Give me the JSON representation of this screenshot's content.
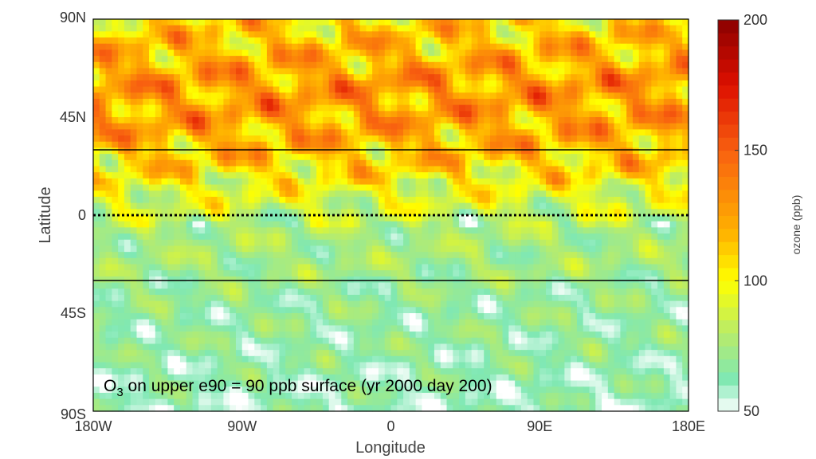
{
  "chart_data": {
    "type": "heatmap",
    "title": "",
    "annotation": {
      "species": "O",
      "subscript": "3",
      "rest": " on upper e90 = 90 ppb surface (yr 2000 day 200)"
    },
    "xlabel": "Longitude",
    "ylabel": "Latitude",
    "xlim": [
      -180,
      180
    ],
    "ylim": [
      -90,
      90
    ],
    "x_ticks": [
      {
        "value": -180,
        "label": "180W"
      },
      {
        "value": -90,
        "label": "90W"
      },
      {
        "value": 0,
        "label": "0"
      },
      {
        "value": 90,
        "label": "90E"
      },
      {
        "value": 180,
        "label": "180E"
      }
    ],
    "y_ticks": [
      {
        "value": 90,
        "label": "90N"
      },
      {
        "value": 45,
        "label": "45N"
      },
      {
        "value": 0,
        "label": "0"
      },
      {
        "value": -45,
        "label": "45S"
      },
      {
        "value": -90,
        "label": "90S"
      }
    ],
    "reference_lines": [
      {
        "lat": 30,
        "style": "solid"
      },
      {
        "lat": 0,
        "style": "dotted"
      },
      {
        "lat": -30,
        "style": "solid"
      }
    ],
    "colorbar": {
      "label": "ozone (ppb)",
      "range": [
        50,
        200
      ],
      "ticks": [
        {
          "value": 200,
          "label": "200"
        },
        {
          "value": 150,
          "label": "150"
        },
        {
          "value": 100,
          "label": "100"
        },
        {
          "value": 50,
          "label": "50"
        }
      ],
      "stops": [
        {
          "value": 50,
          "color": "#ffffff"
        },
        {
          "value": 62,
          "color": "#7fe8b4"
        },
        {
          "value": 80,
          "color": "#b8ec6a"
        },
        {
          "value": 100,
          "color": "#ffff00"
        },
        {
          "value": 118,
          "color": "#ffb400"
        },
        {
          "value": 150,
          "color": "#f86010"
        },
        {
          "value": 175,
          "color": "#dd1000"
        },
        {
          "value": 200,
          "color": "#8b0000"
        }
      ]
    },
    "zonal_mean_ppb": [
      {
        "lat": 90,
        "value": 108
      },
      {
        "lat": 75,
        "value": 118
      },
      {
        "lat": 60,
        "value": 128
      },
      {
        "lat": 45,
        "value": 125
      },
      {
        "lat": 35,
        "value": 120
      },
      {
        "lat": 25,
        "value": 112
      },
      {
        "lat": 15,
        "value": 98
      },
      {
        "lat": 5,
        "value": 88
      },
      {
        "lat": -5,
        "value": 76
      },
      {
        "lat": -15,
        "value": 74
      },
      {
        "lat": -25,
        "value": 73
      },
      {
        "lat": -35,
        "value": 68
      },
      {
        "lat": -45,
        "value": 67
      },
      {
        "lat": -60,
        "value": 66
      },
      {
        "lat": -75,
        "value": 63
      },
      {
        "lat": -90,
        "value": 60
      }
    ]
  }
}
